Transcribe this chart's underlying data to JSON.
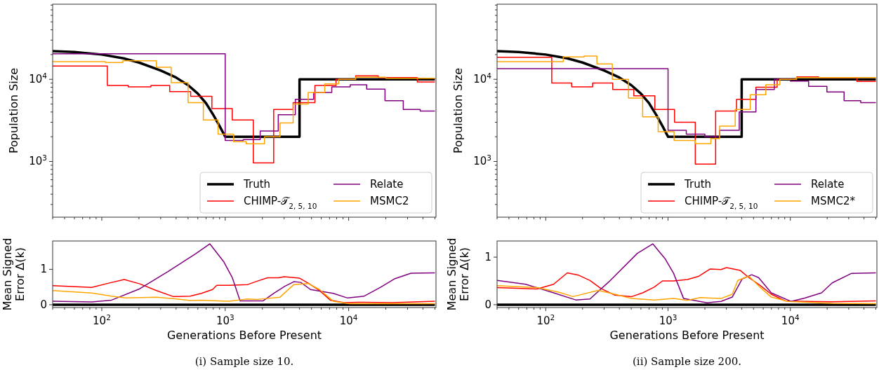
{
  "chart_data": [
    {
      "type": "line",
      "ylabel": "Population Size",
      "log": "xy",
      "legend": "bottom right",
      "tick_labels": "y",
      "xlim": [
        40,
        51000
      ],
      "ylim": [
        210,
        82000
      ],
      "xticks": [
        {
          "value": 40,
          "label": null
        },
        {
          "value": 50,
          "label": null
        },
        {
          "value": 60,
          "label": null
        },
        {
          "value": 70,
          "label": null
        },
        {
          "value": 80,
          "label": null
        },
        {
          "value": 90,
          "label": null
        },
        {
          "value": 100,
          "label": null
        },
        {
          "value": 200,
          "label": null
        },
        {
          "value": 300,
          "label": null
        },
        {
          "value": 400,
          "label": null
        },
        {
          "value": 500,
          "label": null
        },
        {
          "value": 600,
          "label": null
        },
        {
          "value": 700,
          "label": null
        },
        {
          "value": 800,
          "label": null
        },
        {
          "value": 900,
          "label": null
        },
        {
          "value": 1000,
          "label": null
        },
        {
          "value": 2000,
          "label": null
        },
        {
          "value": 3000,
          "label": null
        },
        {
          "value": 4000,
          "label": null
        },
        {
          "value": 5000,
          "label": null
        },
        {
          "value": 6000,
          "label": null
        },
        {
          "value": 7000,
          "label": null
        },
        {
          "value": 8000,
          "label": null
        },
        {
          "value": 9000,
          "label": null
        },
        {
          "value": 10000,
          "label": null
        },
        {
          "value": 20000,
          "label": null
        },
        {
          "value": 30000,
          "label": null
        },
        {
          "value": 40000,
          "label": null
        },
        {
          "value": 50000,
          "label": null
        }
      ],
      "yticks": [
        {
          "value": 300,
          "label": null
        },
        {
          "value": 400,
          "label": null
        },
        {
          "value": 500,
          "label": null
        },
        {
          "value": 600,
          "label": null
        },
        {
          "value": 700,
          "label": null
        },
        {
          "value": 800,
          "label": null
        },
        {
          "value": 900,
          "label": null
        },
        {
          "value": 1000,
          "label": "10$^{3}$"
        },
        {
          "value": 2000,
          "label": null
        },
        {
          "value": 3000,
          "label": null
        },
        {
          "value": 4000,
          "label": null
        },
        {
          "value": 5000,
          "label": null
        },
        {
          "value": 6000,
          "label": null
        },
        {
          "value": 7000,
          "label": null
        },
        {
          "value": 8000,
          "label": null
        },
        {
          "value": 9000,
          "label": null
        },
        {
          "value": 10000,
          "label": "10$^{4}$"
        },
        {
          "value": 20000,
          "label": null
        },
        {
          "value": 30000,
          "label": null
        },
        {
          "value": 40000,
          "label": null
        },
        {
          "value": 50000,
          "label": null
        },
        {
          "value": 60000,
          "label": null
        },
        {
          "value": 70000,
          "label": null
        },
        {
          "value": 80000,
          "label": null
        }
      ],
      "series": [
        {
          "name": "Truth",
          "type": "line",
          "color": "#000000",
          "x": [
            40,
            60,
            100,
            150,
            200,
            300,
            400,
            500,
            600,
            700,
            800,
            900,
            1000,
            4000,
            4000,
            50000
          ],
          "values": [
            22000,
            21500,
            20000,
            18000,
            16000,
            12800,
            10500,
            8500,
            6700,
            5100,
            3700,
            2700,
            2000,
            2000,
            10000,
            10000
          ]
        },
        {
          "name": "CHIMP-𝒯$_{2, 5, 10}$",
          "type": "step",
          "color": "#ff0000",
          "x": [
            40,
            111,
            164,
            250,
            355,
            525,
            780,
            1140,
            1690,
            2470,
            3550,
            5330,
            7900,
            11400,
            17400,
            36000,
            50000
          ],
          "values": [
            14500,
            8400,
            8100,
            8400,
            7100,
            6200,
            4400,
            3200,
            960,
            4300,
            5200,
            8400,
            10000,
            11000,
            10500,
            9300,
            9300
          ]
        },
        {
          "name": "Relate",
          "type": "step",
          "color": "#800080",
          "x": [
            40,
            1000,
            1400,
            1920,
            2690,
            3700,
            5200,
            7300,
            10300,
            14000,
            19700,
            27700,
            38000,
            50000
          ],
          "values": [
            20400,
            1800,
            1850,
            2350,
            3700,
            5700,
            6900,
            8100,
            8600,
            7600,
            5500,
            4300,
            4100,
            4100
          ]
        },
        {
          "name": "MSMC2",
          "type": "step",
          "color": "#ffa500",
          "x": [
            40,
            107,
            148,
            277,
            365,
            500,
            665,
            875,
            1170,
            1480,
            2080,
            2780,
            3550,
            4700,
            6400,
            8300,
            11400,
            20000,
            50000
          ],
          "values": [
            16400,
            16000,
            16800,
            14000,
            9100,
            5200,
            3200,
            2150,
            1740,
            1640,
            2000,
            2950,
            5000,
            6900,
            8800,
            10000,
            10600,
            10300,
            10300
          ]
        }
      ]
    },
    {
      "type": "line",
      "ylabel": "Population Size",
      "log": "xy",
      "legend": "bottom right",
      "tick_labels": "y",
      "xlim": [
        40,
        51000
      ],
      "ylim": [
        210,
        82000
      ],
      "xticks": [
        {
          "value": 40,
          "label": null
        },
        {
          "value": 50,
          "label": null
        },
        {
          "value": 60,
          "label": null
        },
        {
          "value": 70,
          "label": null
        },
        {
          "value": 80,
          "label": null
        },
        {
          "value": 90,
          "label": null
        },
        {
          "value": 100,
          "label": null
        },
        {
          "value": 200,
          "label": null
        },
        {
          "value": 300,
          "label": null
        },
        {
          "value": 400,
          "label": null
        },
        {
          "value": 500,
          "label": null
        },
        {
          "value": 600,
          "label": null
        },
        {
          "value": 700,
          "label": null
        },
        {
          "value": 800,
          "label": null
        },
        {
          "value": 900,
          "label": null
        },
        {
          "value": 1000,
          "label": null
        },
        {
          "value": 2000,
          "label": null
        },
        {
          "value": 3000,
          "label": null
        },
        {
          "value": 4000,
          "label": null
        },
        {
          "value": 5000,
          "label": null
        },
        {
          "value": 6000,
          "label": null
        },
        {
          "value": 7000,
          "label": null
        },
        {
          "value": 8000,
          "label": null
        },
        {
          "value": 9000,
          "label": null
        },
        {
          "value": 10000,
          "label": null
        },
        {
          "value": 20000,
          "label": null
        },
        {
          "value": 30000,
          "label": null
        },
        {
          "value": 40000,
          "label": null
        },
        {
          "value": 50000,
          "label": null
        }
      ],
      "yticks": [
        {
          "value": 300,
          "label": null
        },
        {
          "value": 400,
          "label": null
        },
        {
          "value": 500,
          "label": null
        },
        {
          "value": 600,
          "label": null
        },
        {
          "value": 700,
          "label": null
        },
        {
          "value": 800,
          "label": null
        },
        {
          "value": 900,
          "label": null
        },
        {
          "value": 1000,
          "label": "10$^{3}$"
        },
        {
          "value": 2000,
          "label": null
        },
        {
          "value": 3000,
          "label": null
        },
        {
          "value": 4000,
          "label": null
        },
        {
          "value": 5000,
          "label": null
        },
        {
          "value": 6000,
          "label": null
        },
        {
          "value": 7000,
          "label": null
        },
        {
          "value": 8000,
          "label": null
        },
        {
          "value": 9000,
          "label": null
        },
        {
          "value": 10000,
          "label": "10$^{4}$"
        },
        {
          "value": 20000,
          "label": null
        },
        {
          "value": 30000,
          "label": null
        },
        {
          "value": 40000,
          "label": null
        },
        {
          "value": 50000,
          "label": null
        },
        {
          "value": 60000,
          "label": null
        },
        {
          "value": 70000,
          "label": null
        },
        {
          "value": 80000,
          "label": null
        }
      ],
      "series": [
        {
          "name": "Truth",
          "type": "line",
          "color": "#000000",
          "x": [
            40,
            60,
            100,
            150,
            200,
            300,
            400,
            500,
            600,
            700,
            800,
            900,
            1000,
            4000,
            4000,
            50000
          ],
          "values": [
            22000,
            21500,
            20000,
            18000,
            16000,
            12800,
            10500,
            8500,
            6700,
            5100,
            3700,
            2700,
            2000,
            2000,
            10000,
            10000
          ]
        },
        {
          "name": "CHIMP-𝒯$_{2, 5, 10}$",
          "type": "step",
          "color": "#ff0000",
          "x": [
            40,
            112,
            163,
            242,
            353,
            525,
            780,
            1130,
            1670,
            2450,
            3630,
            5230,
            7800,
            11300,
            17000,
            35000,
            50000
          ],
          "values": [
            18500,
            9000,
            8100,
            9000,
            7500,
            6300,
            4300,
            3000,
            930,
            4100,
            5700,
            8000,
            10000,
            10700,
            10500,
            9400,
            9400
          ]
        },
        {
          "name": "Relate",
          "type": "step",
          "color": "#800080",
          "x": [
            40,
            1000,
            1410,
            2000,
            2640,
            3820,
            5230,
            7400,
            10000,
            14100,
            19900,
            27500,
            37600,
            50000
          ],
          "values": [
            13500,
            2400,
            2150,
            2000,
            2400,
            4000,
            7500,
            10000,
            9500,
            8200,
            7000,
            5500,
            5200,
            5200
          ]
        },
        {
          "name": "MSMC2*",
          "type": "step",
          "color": "#ffa500",
          "x": [
            40,
            139,
            206,
            262,
            350,
            475,
            620,
            830,
            1120,
            1670,
            2240,
            2640,
            3540,
            4700,
            6300,
            8200,
            11200,
            50000
          ],
          "values": [
            16400,
            18700,
            19200,
            15400,
            10000,
            5900,
            3500,
            2300,
            1800,
            1650,
            1900,
            2700,
            4300,
            6500,
            8600,
            10000,
            10500,
            10500
          ]
        }
      ]
    },
    {
      "type": "line",
      "xlabel": "Generations Before Present",
      "ylabel": "Mean Signed\nError Δ(k)",
      "log": "x",
      "legend": false,
      "xlim": [
        40,
        51000
      ],
      "ylim": [
        -0.08,
        1.8
      ],
      "annotations": [
        "(i) Sample size 10."
      ],
      "yticks": [
        {
          "value": 0,
          "label": "0"
        },
        {
          "value": 1,
          "label": "1"
        }
      ],
      "xticks": [
        {
          "value": 40,
          "label": null
        },
        {
          "value": 50,
          "label": null
        },
        {
          "value": 60,
          "label": null
        },
        {
          "value": 70,
          "label": null
        },
        {
          "value": 80,
          "label": null
        },
        {
          "value": 90,
          "label": null
        },
        {
          "value": 100,
          "label": "10$^{2}$"
        },
        {
          "value": 200,
          "label": null
        },
        {
          "value": 300,
          "label": null
        },
        {
          "value": 400,
          "label": null
        },
        {
          "value": 500,
          "label": null
        },
        {
          "value": 600,
          "label": null
        },
        {
          "value": 700,
          "label": null
        },
        {
          "value": 800,
          "label": null
        },
        {
          "value": 900,
          "label": null
        },
        {
          "value": 1000,
          "label": "10$^{3}$"
        },
        {
          "value": 2000,
          "label": null
        },
        {
          "value": 3000,
          "label": null
        },
        {
          "value": 4000,
          "label": null
        },
        {
          "value": 5000,
          "label": null
        },
        {
          "value": 6000,
          "label": null
        },
        {
          "value": 7000,
          "label": null
        },
        {
          "value": 8000,
          "label": null
        },
        {
          "value": 9000,
          "label": null
        },
        {
          "value": 10000,
          "label": "10$^{4}$"
        },
        {
          "value": 20000,
          "label": null
        },
        {
          "value": 30000,
          "label": null
        },
        {
          "value": 40000,
          "label": null
        },
        {
          "value": 50000,
          "label": null
        }
      ],
      "series": [
        {
          "type": "line",
          "color": "#000000",
          "x": [
            40,
            50000
          ],
          "values": [
            0,
            0
          ]
        },
        {
          "type": "line",
          "color": "#ff0000",
          "x": [
            40,
            83,
            114,
            152,
            203,
            277,
            380,
            520,
            641,
            790,
            855,
            1080,
            1520,
            1830,
            2200,
            2700,
            3000,
            4000,
            4700,
            5800,
            7100,
            9200,
            13300,
            22500,
            50000
          ],
          "values": [
            0.54,
            0.49,
            0.61,
            0.71,
            0.59,
            0.4,
            0.23,
            0.24,
            0.32,
            0.43,
            0.55,
            0.55,
            0.57,
            0.67,
            0.76,
            0.76,
            0.79,
            0.75,
            0.61,
            0.4,
            0.13,
            0.06,
            0.07,
            0.06,
            0.1
          ]
        },
        {
          "type": "line",
          "color": "#800080",
          "x": [
            40,
            83,
            120,
            203,
            342,
            577,
            750,
            975,
            1140,
            1320,
            1640,
            2030,
            2490,
            3040,
            3600,
            4100,
            4900,
            7500,
            9800,
            13300,
            18100,
            23500,
            32000,
            50000
          ],
          "values": [
            0.1,
            0.08,
            0.13,
            0.45,
            0.93,
            1.44,
            1.72,
            1.21,
            0.77,
            0.11,
            0.11,
            0.11,
            0.33,
            0.52,
            0.65,
            0.63,
            0.43,
            0.32,
            0.19,
            0.24,
            0.49,
            0.73,
            0.89,
            0.9
          ]
        },
        {
          "type": "line",
          "color": "#ffa500",
          "x": [
            40,
            83,
            120,
            156,
            277,
            380,
            520,
            641,
            875,
            1080,
            1480,
            1830,
            2770,
            3600,
            4700,
            5800,
            7500,
            10200,
            22500,
            50000
          ],
          "values": [
            0.4,
            0.33,
            0.24,
            0.19,
            0.21,
            0.17,
            0.12,
            0.13,
            0.11,
            0.1,
            0.16,
            0.15,
            0.21,
            0.57,
            0.6,
            0.43,
            0.1,
            0.03,
            0.03,
            0.03
          ]
        }
      ]
    },
    {
      "type": "line",
      "xlabel": "Generations Before Present",
      "ylabel": "Mean Signed\nError Δ(k)",
      "log": "x",
      "legend": false,
      "xlim": [
        40,
        51000
      ],
      "ylim": [
        -0.06,
        1.34
      ],
      "annotations": [
        "(ii) Sample size 200."
      ],
      "yticks": [
        {
          "value": 0,
          "label": "0"
        },
        {
          "value": 1,
          "label": "1"
        }
      ],
      "xticks": [
        {
          "value": 40,
          "label": null
        },
        {
          "value": 50,
          "label": null
        },
        {
          "value": 60,
          "label": null
        },
        {
          "value": 70,
          "label": null
        },
        {
          "value": 80,
          "label": null
        },
        {
          "value": 90,
          "label": null
        },
        {
          "value": 100,
          "label": "10$^{2}$"
        },
        {
          "value": 200,
          "label": null
        },
        {
          "value": 300,
          "label": null
        },
        {
          "value": 400,
          "label": null
        },
        {
          "value": 500,
          "label": null
        },
        {
          "value": 600,
          "label": null
        },
        {
          "value": 700,
          "label": null
        },
        {
          "value": 800,
          "label": null
        },
        {
          "value": 900,
          "label": null
        },
        {
          "value": 1000,
          "label": "10$^{3}$"
        },
        {
          "value": 2000,
          "label": null
        },
        {
          "value": 3000,
          "label": null
        },
        {
          "value": 4000,
          "label": null
        },
        {
          "value": 5000,
          "label": null
        },
        {
          "value": 6000,
          "label": null
        },
        {
          "value": 7000,
          "label": null
        },
        {
          "value": 8000,
          "label": null
        },
        {
          "value": 9000,
          "label": null
        },
        {
          "value": 10000,
          "label": "10$^{4}$"
        },
        {
          "value": 20000,
          "label": null
        },
        {
          "value": 30000,
          "label": null
        },
        {
          "value": 40000,
          "label": null
        },
        {
          "value": 50000,
          "label": null
        }
      ],
      "series": [
        {
          "type": "line",
          "color": "#000000",
          "x": [
            40,
            50000
          ],
          "values": [
            0,
            0
          ]
        },
        {
          "type": "line",
          "color": "#ff0000",
          "x": [
            40,
            85,
            116,
            150,
            186,
            230,
            283,
            368,
            505,
            620,
            770,
            900,
            1110,
            1440,
            1790,
            2200,
            2710,
            3010,
            3900,
            4580,
            5640,
            6980,
            9080,
            13100,
            22000,
            50000
          ],
          "values": [
            0.36,
            0.33,
            0.43,
            0.67,
            0.62,
            0.51,
            0.34,
            0.2,
            0.17,
            0.25,
            0.37,
            0.5,
            0.5,
            0.53,
            0.6,
            0.75,
            0.74,
            0.78,
            0.72,
            0.57,
            0.41,
            0.22,
            0.08,
            0.07,
            0.06,
            0.08
          ]
        },
        {
          "type": "line",
          "color": "#800080",
          "x": [
            40,
            68.5,
            116,
            176,
            230,
            331,
            561,
            750,
            950,
            1110,
            1340,
            2090,
            2710,
            3350,
            4030,
            4830,
            5500,
            6980,
            10100,
            13100,
            18000,
            22000,
            31700,
            50000
          ],
          "values": [
            0.51,
            0.43,
            0.25,
            0.1,
            0.12,
            0.49,
            1.08,
            1.28,
            0.96,
            0.66,
            0.13,
            0.04,
            0.07,
            0.16,
            0.54,
            0.63,
            0.57,
            0.25,
            0.07,
            0.14,
            0.25,
            0.46,
            0.66,
            0.67
          ]
        },
        {
          "type": "line",
          "color": "#ffa500",
          "x": [
            40,
            85,
            129,
            167,
            268,
            368,
            505,
            770,
            1110,
            1440,
            1830,
            2710,
            3350,
            3720,
            4580,
            5640,
            6980,
            9560,
            22000,
            50000
          ],
          "values": [
            0.4,
            0.36,
            0.26,
            0.17,
            0.3,
            0.22,
            0.13,
            0.1,
            0.13,
            0.09,
            0.15,
            0.13,
            0.22,
            0.51,
            0.6,
            0.37,
            0.16,
            0.07,
            0.03,
            0.02
          ]
        }
      ]
    }
  ]
}
